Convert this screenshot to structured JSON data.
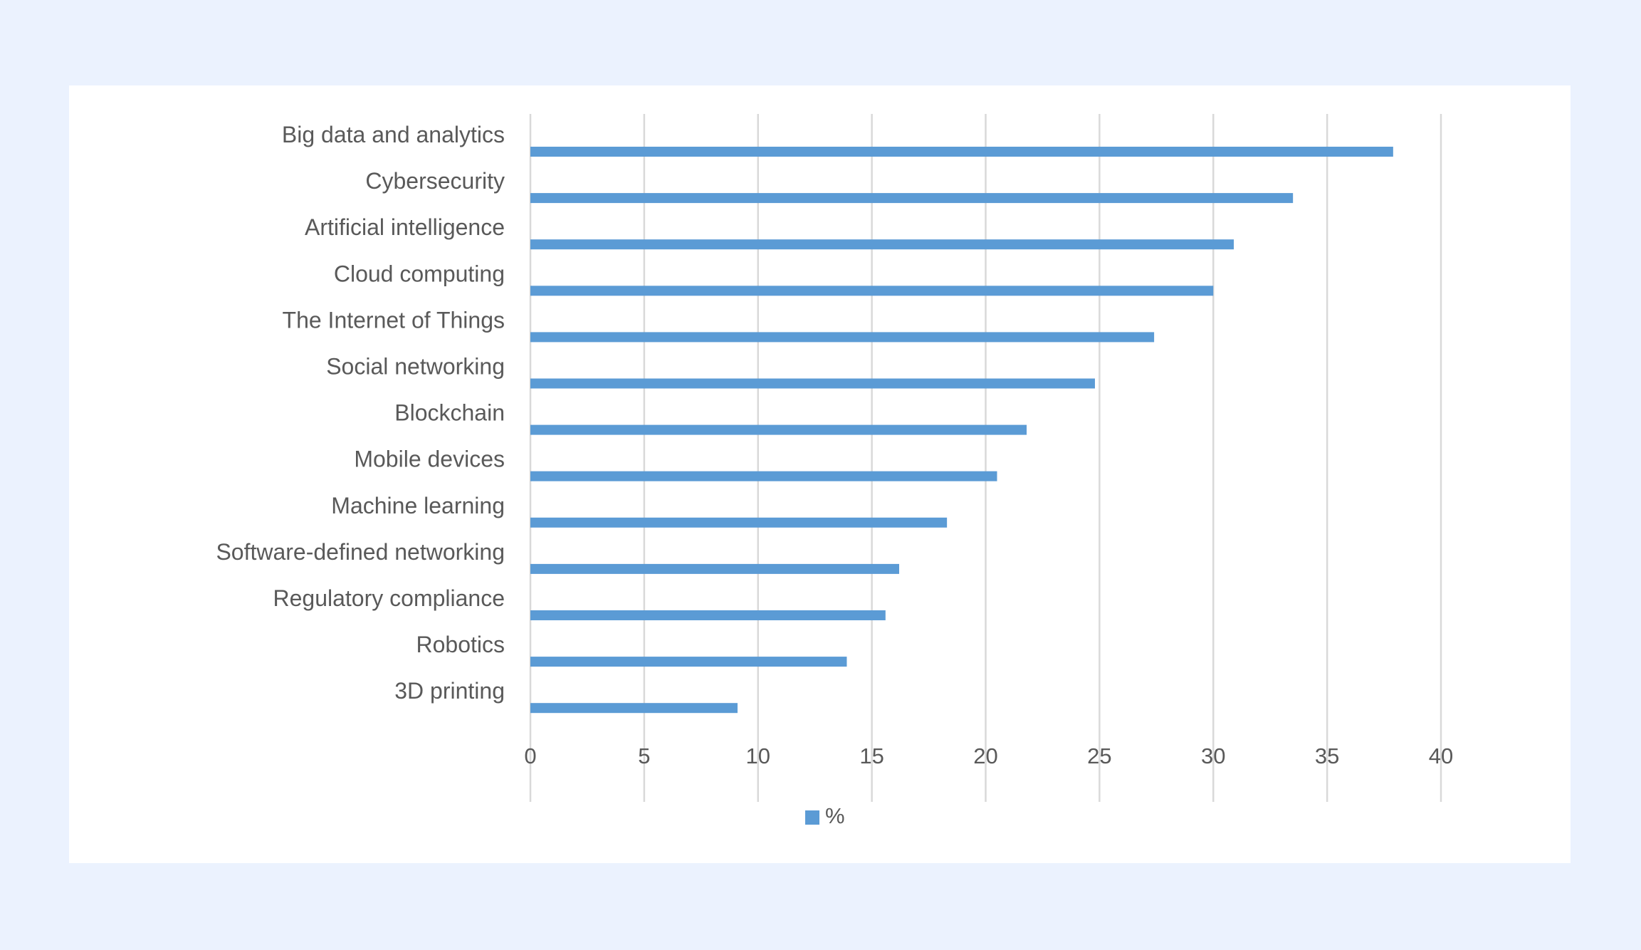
{
  "chart_data": {
    "type": "bar",
    "orientation": "horizontal",
    "title": "",
    "xlabel": "",
    "ylabel": "",
    "categories": [
      "Big data and analytics",
      "Cybersecurity",
      "Artificial intelligence",
      "Cloud computing",
      "The Internet of Things",
      "Social networking",
      "Blockchain",
      "Mobile devices",
      "Machine learning",
      "Software-defined networking",
      "Regulatory compliance",
      "Robotics",
      "3D printing"
    ],
    "series": [
      {
        "name": "%",
        "color": "#5b9bd5",
        "values": [
          37.9,
          33.5,
          30.9,
          30.0,
          27.4,
          24.8,
          21.8,
          20.5,
          18.3,
          16.2,
          15.6,
          13.9,
          9.1
        ]
      }
    ],
    "xlim": [
      0,
      40
    ],
    "xticks": [
      "0",
      "5",
      "10",
      "15",
      "20",
      "25",
      "30",
      "35",
      "40"
    ],
    "grid": true,
    "legend": "bottom"
  }
}
